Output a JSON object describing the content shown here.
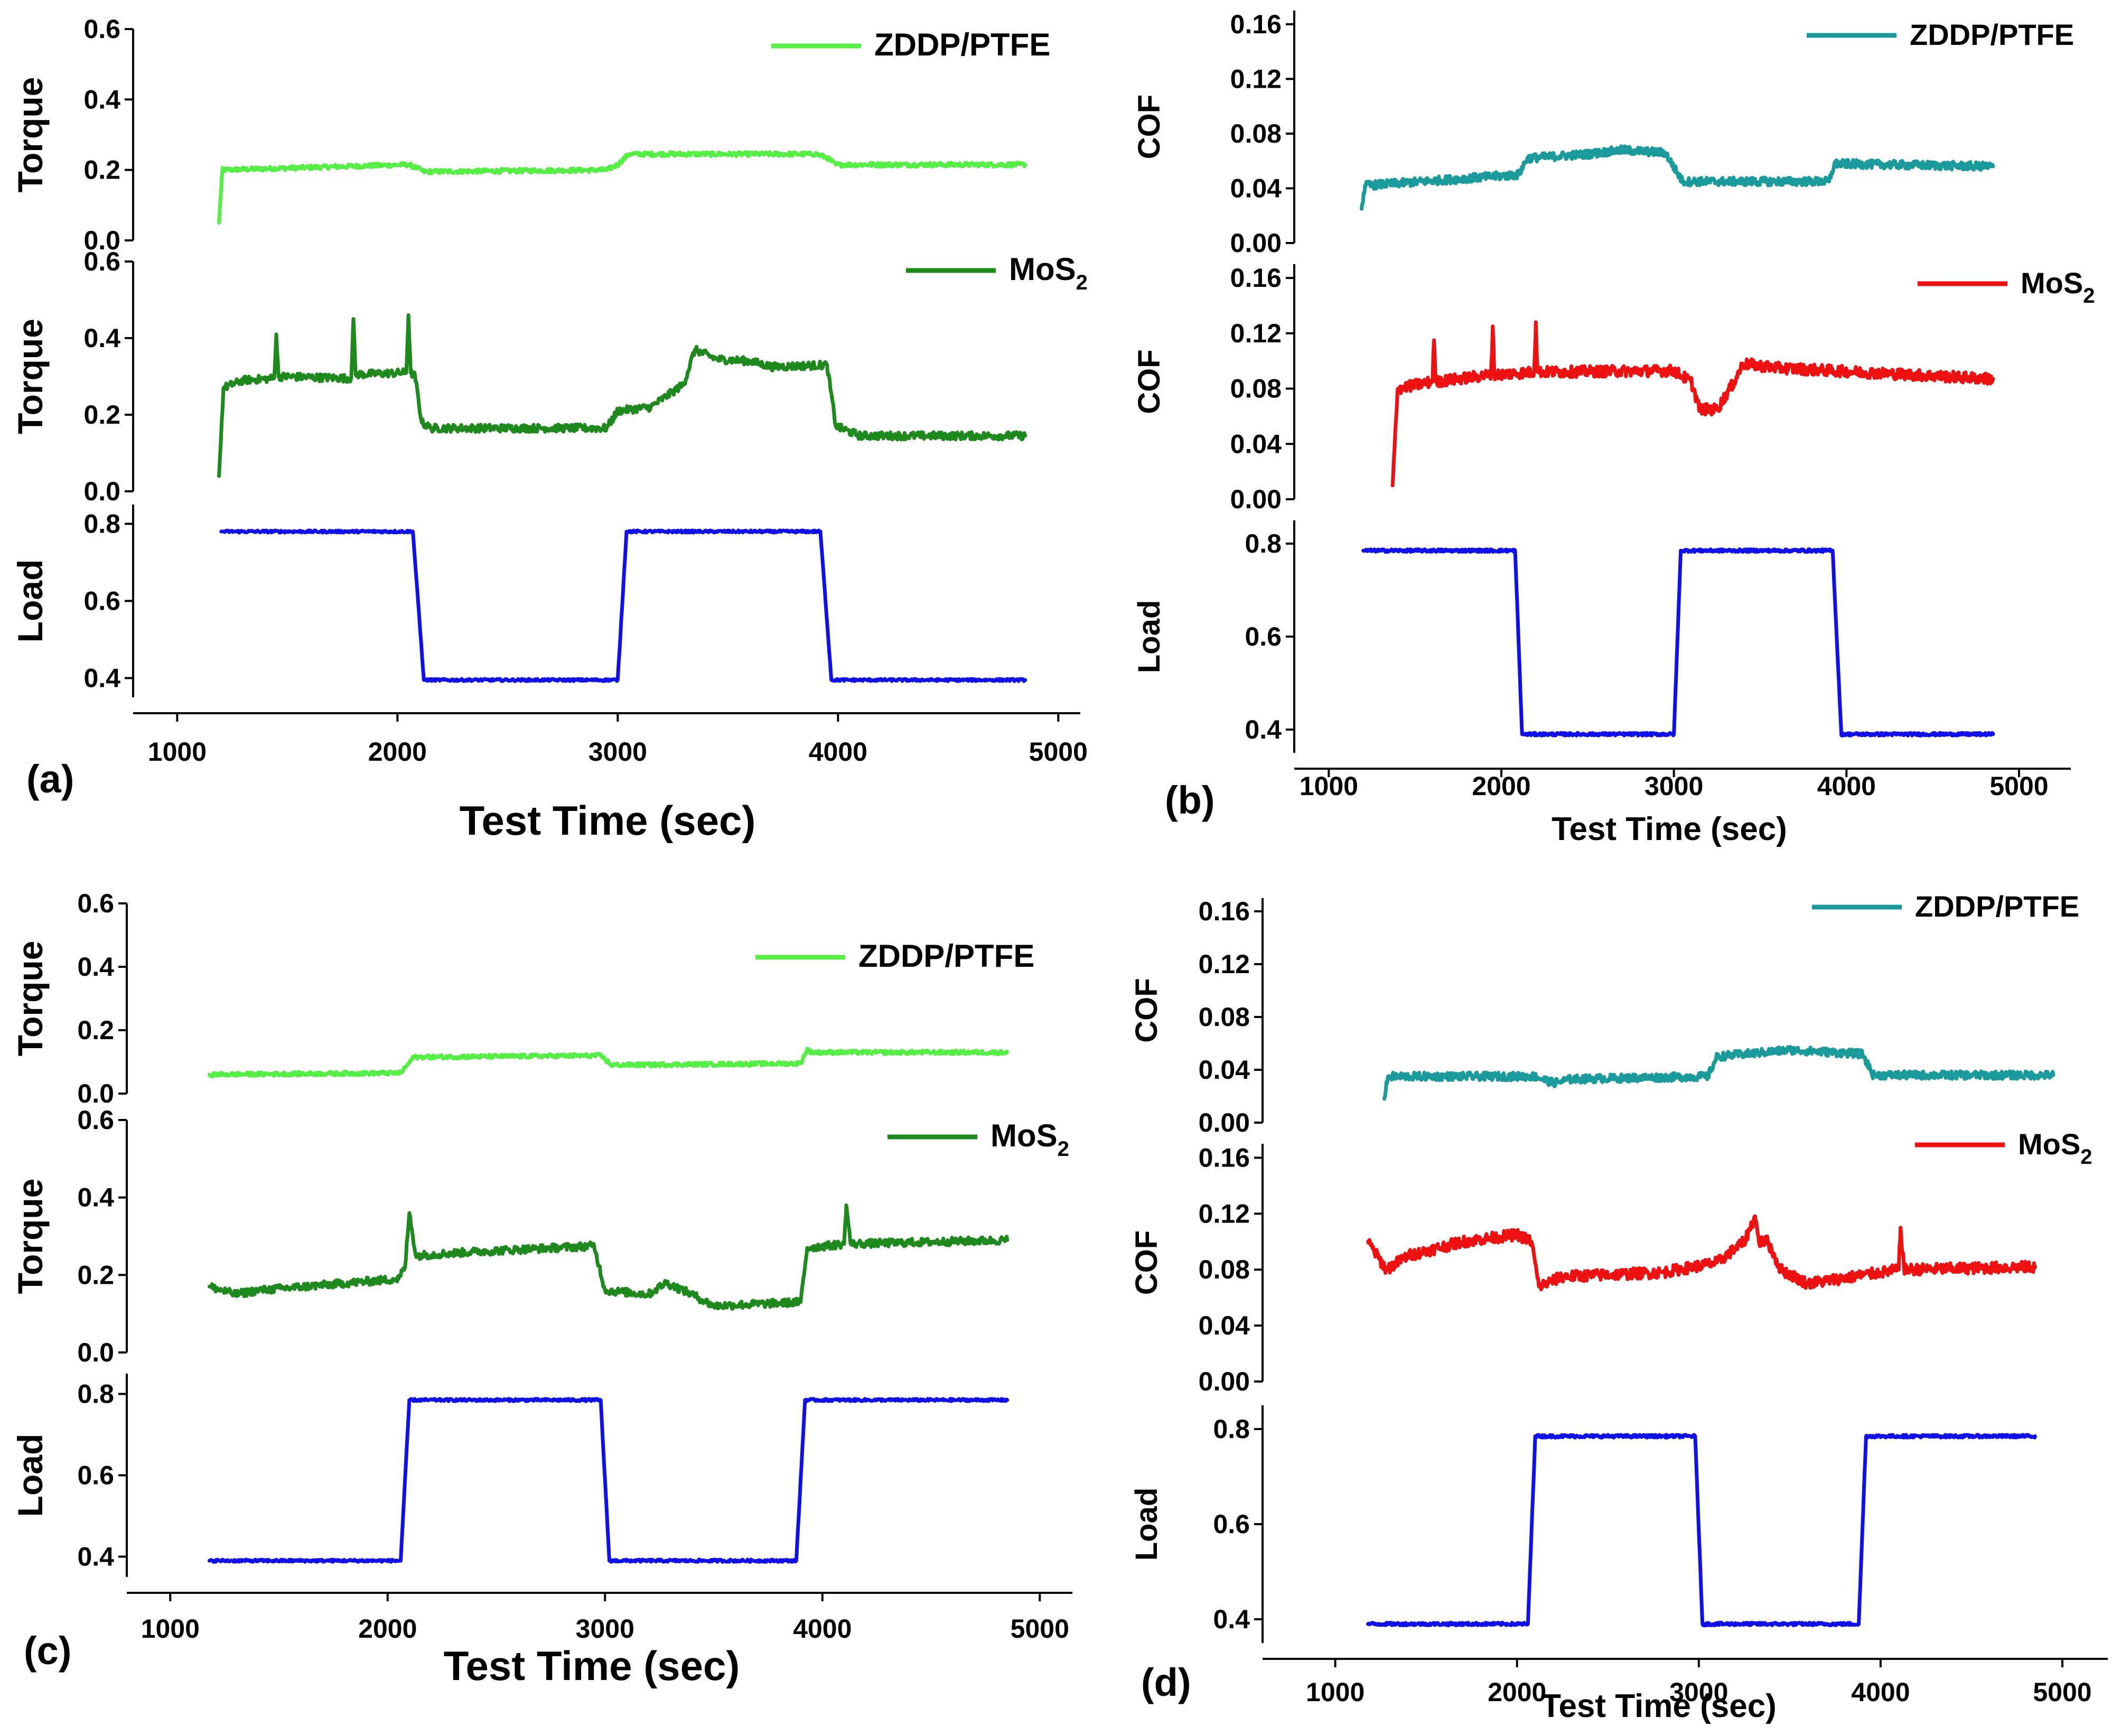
{
  "chart_data": [
    {
      "panel": "(a)",
      "type": "line",
      "xlabel": "Test Time (sec)",
      "xlim": [
        800,
        5100
      ],
      "xticks": [
        1000,
        2000,
        3000,
        4000,
        5000
      ],
      "subplots": [
        {
          "ylabel": "Torque",
          "ylim": [
            0,
            0.6
          ],
          "yticks": [
            "0.0",
            "0.2",
            "0.4",
            "0.6"
          ],
          "series": [
            {
              "name": "ZDDP/PTFE",
              "color": "#55ee44",
              "noise": 0.006,
              "points": [
                [
                  1190,
                  0.05
                ],
                [
                  1205,
                  0.2
                ],
                [
                  2050,
                  0.215
                ],
                [
                  2090,
                  0.205
                ],
                [
                  2120,
                  0.195
                ],
                [
                  2950,
                  0.2
                ],
                [
                  3000,
                  0.215
                ],
                [
                  3050,
                  0.245
                ],
                [
                  3900,
                  0.245
                ],
                [
                  3950,
                  0.235
                ],
                [
                  3990,
                  0.215
                ],
                [
                  4850,
                  0.215
                ]
              ]
            },
            {
              "name": "MoS2",
              "legend_text": "MoS",
              "legend_sub": "2",
              "color": "#1e8a1e",
              "noise": 0.01,
              "points": [
                [
                  1190,
                  0.04
                ],
                [
                  1210,
                  0.27
                ],
                [
                  1300,
                  0.29
                ],
                [
                  1440,
                  0.295
                ],
                [
                  1450,
                  0.41
                ],
                [
                  1460,
                  0.3
                ],
                [
                  1790,
                  0.295
                ],
                [
                  1800,
                  0.45
                ],
                [
                  1810,
                  0.305
                ],
                [
                  2040,
                  0.31
                ],
                [
                  2050,
                  0.46
                ],
                [
                  2060,
                  0.31
                ],
                [
                  2080,
                  0.3
                ],
                [
                  2110,
                  0.18
                ],
                [
                  2150,
                  0.165
                ],
                [
                  2950,
                  0.165
                ],
                [
                  3000,
                  0.21
                ],
                [
                  3150,
                  0.22
                ],
                [
                  3250,
                  0.26
                ],
                [
                  3300,
                  0.28
                ],
                [
                  3350,
                  0.37
                ],
                [
                  3450,
                  0.345
                ],
                [
                  3600,
                  0.34
                ],
                [
                  3700,
                  0.325
                ],
                [
                  3950,
                  0.33
                ],
                [
                  3990,
                  0.17
                ],
                [
                  4100,
                  0.145
                ],
                [
                  4850,
                  0.145
                ]
              ]
            }
          ]
        },
        {
          "ylabel": "Load",
          "ylim": [
            0.35,
            0.85
          ],
          "yticks": [
            "0.4",
            "0.6",
            "0.8"
          ],
          "series": [
            {
              "name": "Load",
              "color": "#1010e8",
              "noise": 0.003,
              "points": [
                [
                  1200,
                  0.78
                ],
                [
                  2070,
                  0.78
                ],
                [
                  2120,
                  0.395
                ],
                [
                  3000,
                  0.395
                ],
                [
                  3040,
                  0.78
                ],
                [
                  3920,
                  0.78
                ],
                [
                  3970,
                  0.395
                ],
                [
                  4850,
                  0.395
                ]
              ]
            }
          ]
        }
      ]
    },
    {
      "panel": "(b)",
      "type": "line",
      "xlabel": "Test Time (sec)",
      "xlim": [
        800,
        5300
      ],
      "xticks": [
        1000,
        2000,
        3000,
        4000,
        5000
      ],
      "subplots": [
        {
          "ylabel": "COF",
          "ylim": [
            0,
            0.17
          ],
          "yticks": [
            "0.00",
            "0.04",
            "0.08",
            "0.12",
            "0.16"
          ],
          "series": [
            {
              "name": "ZDDP/PTFE",
              "color": "#1a9a9a",
              "noise": 0.003,
              "points": [
                [
                  1190,
                  0.025
                ],
                [
                  1210,
                  0.042
                ],
                [
                  2100,
                  0.05
                ],
                [
                  2150,
                  0.062
                ],
                [
                  2500,
                  0.065
                ],
                [
                  2700,
                  0.068
                ],
                [
                  2950,
                  0.066
                ],
                [
                  3050,
                  0.045
                ],
                [
                  3900,
                  0.045
                ],
                [
                  3930,
                  0.058
                ],
                [
                  4850,
                  0.056
                ]
              ]
            },
            {
              "name": "MoS2",
              "legend_text": "MoS",
              "legend_sub": "2",
              "color": "#ee1111",
              "noise": 0.004,
              "points": [
                [
                  1370,
                  0.01
                ],
                [
                  1400,
                  0.08
                ],
                [
                  1600,
                  0.085
                ],
                [
                  1610,
                  0.115
                ],
                [
                  1620,
                  0.085
                ],
                [
                  1940,
                  0.09
                ],
                [
                  1950,
                  0.125
                ],
                [
                  1960,
                  0.09
                ],
                [
                  2190,
                  0.092
                ],
                [
                  2200,
                  0.128
                ],
                [
                  2210,
                  0.092
                ],
                [
                  3000,
                  0.093
                ],
                [
                  3100,
                  0.085
                ],
                [
                  3150,
                  0.065
                ],
                [
                  3250,
                  0.065
                ],
                [
                  3350,
                  0.085
                ],
                [
                  3400,
                  0.098
                ],
                [
                  3600,
                  0.095
                ],
                [
                  4850,
                  0.087
                ]
              ]
            }
          ]
        },
        {
          "ylabel": "Load",
          "ylim": [
            0.35,
            0.85
          ],
          "yticks": [
            "0.4",
            "0.6",
            "0.8"
          ],
          "series": [
            {
              "name": "Load",
              "color": "#1010e8",
              "noise": 0.003,
              "points": [
                [
                  1200,
                  0.785
                ],
                [
                  2080,
                  0.785
                ],
                [
                  2120,
                  0.39
                ],
                [
                  3000,
                  0.39
                ],
                [
                  3040,
                  0.785
                ],
                [
                  3920,
                  0.785
                ],
                [
                  3970,
                  0.39
                ],
                [
                  4850,
                  0.39
                ]
              ]
            }
          ]
        }
      ]
    },
    {
      "panel": "(c)",
      "type": "line",
      "xlabel": "Test Time (sec)",
      "xlim": [
        800,
        5150
      ],
      "xticks": [
        1000,
        2000,
        3000,
        4000,
        5000
      ],
      "subplots": [
        {
          "ylabel": "Torque",
          "ylim": [
            0,
            0.6
          ],
          "yticks": [
            "0.0",
            "0.2",
            "0.4",
            "0.6"
          ],
          "series": [
            {
              "name": "ZDDP/PTFE",
              "color": "#55ee44",
              "noise": 0.006,
              "points": [
                [
                  1180,
                  0.06
                ],
                [
                  2060,
                  0.065
                ],
                [
                  2120,
                  0.115
                ],
                [
                  2980,
                  0.12
                ],
                [
                  3030,
                  0.09
                ],
                [
                  3900,
                  0.095
                ],
                [
                  3930,
                  0.14
                ],
                [
                  3950,
                  0.13
                ],
                [
                  4850,
                  0.13
                ]
              ]
            },
            {
              "name": "MoS2",
              "legend_text": "MoS",
              "legend_sub": "2",
              "color": "#1e8a1e",
              "noise": 0.01,
              "points": [
                [
                  1180,
                  0.17
                ],
                [
                  1300,
                  0.15
                ],
                [
                  1400,
                  0.16
                ],
                [
                  2050,
                  0.19
                ],
                [
                  2080,
                  0.22
                ],
                [
                  2100,
                  0.36
                ],
                [
                  2130,
                  0.25
                ],
                [
                  2400,
                  0.26
                ],
                [
                  2950,
                  0.275
                ],
                [
                  3000,
                  0.16
                ],
                [
                  3200,
                  0.15
                ],
                [
                  3280,
                  0.18
                ],
                [
                  3400,
                  0.15
                ],
                [
                  3500,
                  0.12
                ],
                [
                  3900,
                  0.13
                ],
                [
                  3930,
                  0.27
                ],
                [
                  4100,
                  0.28
                ],
                [
                  4110,
                  0.38
                ],
                [
                  4130,
                  0.28
                ],
                [
                  4850,
                  0.29
                ]
              ]
            }
          ]
        },
        {
          "ylabel": "Load",
          "ylim": [
            0.35,
            0.85
          ],
          "yticks": [
            "0.4",
            "0.6",
            "0.8"
          ],
          "series": [
            {
              "name": "Load",
              "color": "#1010e8",
              "noise": 0.003,
              "points": [
                [
                  1180,
                  0.39
                ],
                [
                  2060,
                  0.39
                ],
                [
                  2100,
                  0.785
                ],
                [
                  2980,
                  0.785
                ],
                [
                  3020,
                  0.39
                ],
                [
                  3880,
                  0.39
                ],
                [
                  3920,
                  0.785
                ],
                [
                  4850,
                  0.785
                ]
              ]
            }
          ]
        }
      ]
    },
    {
      "panel": "(d)",
      "type": "line",
      "xlabel": "Test Time (sec)",
      "xlim": [
        600,
        5250
      ],
      "xticks": [
        1000,
        2000,
        3000,
        4000,
        5000
      ],
      "subplots": [
        {
          "ylabel": "COF",
          "ylim": [
            0,
            0.17
          ],
          "yticks": [
            "0.00",
            "0.04",
            "0.08",
            "0.12",
            "0.16"
          ],
          "series": [
            {
              "name": "ZDDP/PTFE",
              "color": "#1a9a9a",
              "noise": 0.003,
              "points": [
                [
                  1270,
                  0.018
                ],
                [
                  1290,
                  0.035
                ],
                [
                  2100,
                  0.035
                ],
                [
                  2200,
                  0.03
                ],
                [
                  2300,
                  0.033
                ],
                [
                  3050,
                  0.035
                ],
                [
                  3100,
                  0.05
                ],
                [
                  3500,
                  0.055
                ],
                [
                  3900,
                  0.052
                ],
                [
                  3960,
                  0.036
                ],
                [
                  4950,
                  0.036
                ]
              ]
            },
            {
              "name": "MoS2",
              "legend_text": "MoS",
              "legend_sub": "2",
              "color": "#ee1111",
              "noise": 0.004,
              "points": [
                [
                  1180,
                  0.1
                ],
                [
                  1280,
                  0.08
                ],
                [
                  1400,
                  0.09
                ],
                [
                  1700,
                  0.1
                ],
                [
                  2000,
                  0.105
                ],
                [
                  2080,
                  0.1
                ],
                [
                  2120,
                  0.068
                ],
                [
                  2250,
                  0.075
                ],
                [
                  2800,
                  0.078
                ],
                [
                  3100,
                  0.085
                ],
                [
                  3250,
                  0.1
                ],
                [
                  3310,
                  0.118
                ],
                [
                  3330,
                  0.1
                ],
                [
                  3380,
                  0.1
                ],
                [
                  3450,
                  0.08
                ],
                [
                  3600,
                  0.07
                ],
                [
                  4000,
                  0.078
                ],
                [
                  4100,
                  0.08
                ],
                [
                  4110,
                  0.11
                ],
                [
                  4130,
                  0.08
                ],
                [
                  4850,
                  0.082
                ]
              ]
            }
          ]
        },
        {
          "ylabel": "Load",
          "ylim": [
            0.35,
            0.85
          ],
          "yticks": [
            "0.4",
            "0.6",
            "0.8"
          ],
          "series": [
            {
              "name": "Load",
              "color": "#1010e8",
              "noise": 0.003,
              "points": [
                [
                  1180,
                  0.39
                ],
                [
                  2060,
                  0.39
                ],
                [
                  2100,
                  0.785
                ],
                [
                  2980,
                  0.785
                ],
                [
                  3020,
                  0.39
                ],
                [
                  3880,
                  0.39
                ],
                [
                  3920,
                  0.785
                ],
                [
                  4850,
                  0.785
                ]
              ]
            }
          ]
        }
      ]
    }
  ]
}
